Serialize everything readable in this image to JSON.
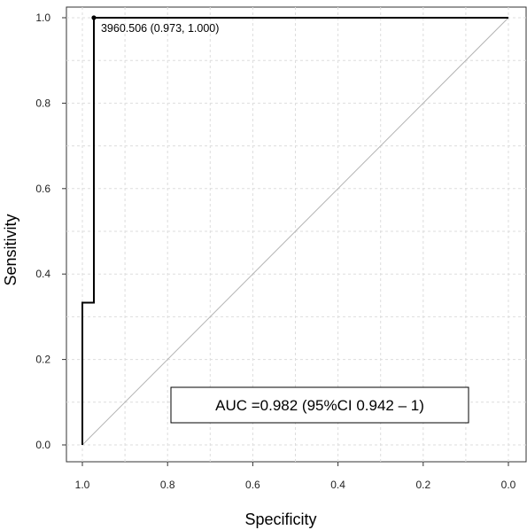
{
  "chart_data": {
    "type": "line",
    "title": "",
    "xlabel": "Specificity",
    "ylabel": "Sensitivity",
    "x_reversed": true,
    "xlim": [
      1.03,
      -0.04
    ],
    "ylim": [
      -0.04,
      1.03
    ],
    "x_ticks": [
      1.0,
      0.8,
      0.6,
      0.4,
      0.2,
      0.0
    ],
    "x_tick_labels": [
      "1.0",
      "0.8",
      "0.6",
      "0.4",
      "0.2",
      "0.0"
    ],
    "y_ticks": [
      0.0,
      0.2,
      0.4,
      0.6,
      0.8,
      1.0
    ],
    "y_tick_labels": [
      "0.0",
      "0.2",
      "0.4",
      "0.6",
      "0.8",
      "1.0"
    ],
    "grid": true,
    "series": [
      {
        "type": "step",
        "color": "#000000",
        "points": [
          {
            "specificity": 1.0,
            "sensitivity": 0.0
          },
          {
            "specificity": 1.0,
            "sensitivity": 0.333
          },
          {
            "specificity": 0.973,
            "sensitivity": 0.333
          },
          {
            "specificity": 0.973,
            "sensitivity": 1.0
          },
          {
            "specificity": 0.0,
            "sensitivity": 1.0
          }
        ]
      }
    ],
    "reference_line": {
      "from": {
        "specificity": 1.0,
        "sensitivity": 0.0
      },
      "to": {
        "specificity": 0.0,
        "sensitivity": 1.0
      },
      "color": "#b3b3b3"
    },
    "threshold_point": {
      "specificity": 0.973,
      "sensitivity": 1.0,
      "label": "3960.506 (0.973, 1.000)"
    },
    "auc_box": {
      "text": "AUC =0.982 (95%CI 0.942 – 1)",
      "position": "bottom-right"
    }
  }
}
